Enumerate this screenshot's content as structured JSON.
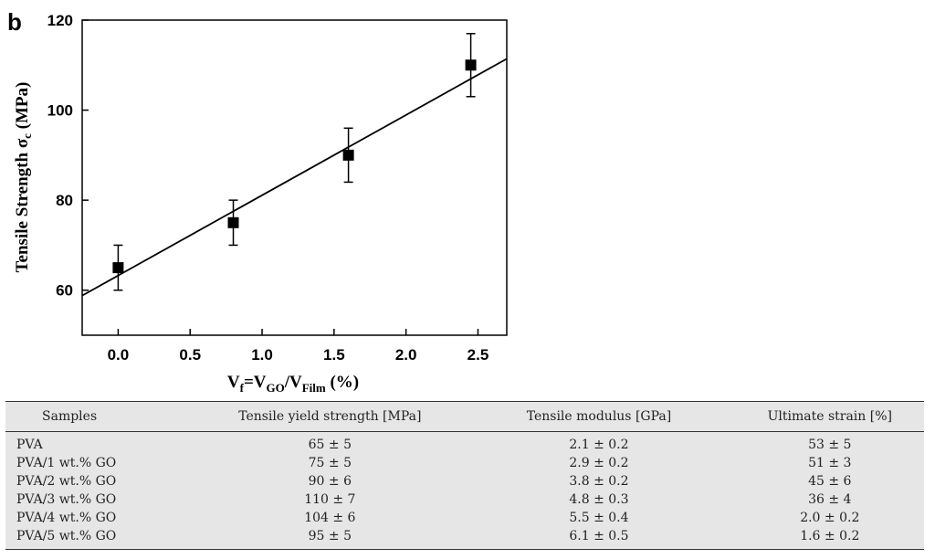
{
  "panel_label": "b",
  "chart_data": {
    "type": "scatter",
    "x": [
      0.0,
      0.8,
      1.6,
      2.45
    ],
    "y": [
      65,
      75,
      90,
      110
    ],
    "y_error": [
      5,
      5,
      6,
      7
    ],
    "fit_line": {
      "x": [
        -0.25,
        2.7
      ],
      "y": [
        58.8,
        111.4
      ]
    },
    "xlim": [
      -0.25,
      2.7
    ],
    "ylim": [
      50,
      120
    ],
    "x_ticks": [
      "0.0",
      "0.5",
      "1.0",
      "1.5",
      "2.0",
      "2.5"
    ],
    "x_tick_values": [
      0.0,
      0.5,
      1.0,
      1.5,
      2.0,
      2.5
    ],
    "y_ticks": [
      "60",
      "80",
      "100",
      "120"
    ],
    "y_tick_values": [
      60,
      80,
      100,
      120
    ],
    "ylabel": {
      "main": "Tensile Strength σ",
      "sub": "c",
      "unit": " (MPa)"
    },
    "xlabel": {
      "v": "V",
      "f": "f",
      "eq": "=V",
      "go": "GO",
      "slash": "/V",
      "film": "Film",
      "unit": " (%)"
    },
    "marker": "square",
    "color": "#000000"
  },
  "table": {
    "headers": [
      "Samples",
      "Tensile yield strength [MPa]",
      "Tensile modulus [GPa]",
      "Ultimate strain [%]"
    ],
    "rows": [
      [
        "PVA",
        "65 ± 5",
        "2.1 ± 0.2",
        "53 ± 5"
      ],
      [
        "PVA/1 wt.% GO",
        "75 ± 5",
        "2.9 ± 0.2",
        "51 ± 3"
      ],
      [
        "PVA/2 wt.% GO",
        "90 ± 6",
        "3.8 ± 0.2",
        "45 ± 6"
      ],
      [
        "PVA/3 wt.% GO",
        "110 ± 7",
        "4.8 ± 0.3",
        "36 ± 4"
      ],
      [
        "PVA/4 wt.% GO",
        "104 ± 6",
        "5.5 ± 0.4",
        "2.0 ± 0.2"
      ],
      [
        "PVA/5 wt.% GO",
        "95 ± 5",
        "6.1 ± 0.5",
        "1.6 ± 0.2"
      ]
    ]
  }
}
